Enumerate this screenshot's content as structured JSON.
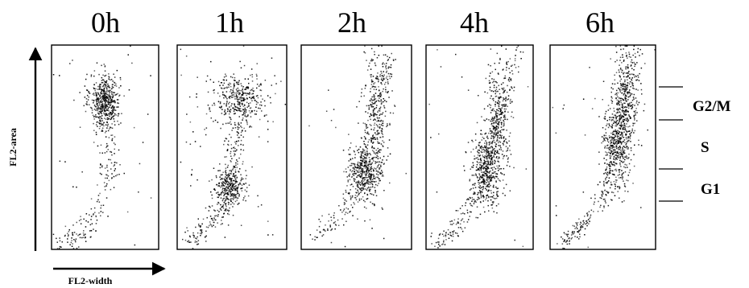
{
  "chart_data": {
    "type": "scatter",
    "xlabel": "FL2-width",
    "ylabel": "FL2-area",
    "panels": [
      {
        "label": "0h",
        "clusters": [
          {
            "x": 0.5,
            "y": 0.73,
            "sx": 0.07,
            "sy": 0.065,
            "n": 500
          }
        ],
        "trail": {
          "points": [
            [
              0.08,
              0.03
            ],
            [
              0.3,
              0.07
            ],
            [
              0.45,
              0.2
            ],
            [
              0.55,
              0.38
            ],
            [
              0.52,
              0.52
            ],
            [
              0.48,
              0.62
            ]
          ],
          "n": 190,
          "spread": 0.045
        },
        "scatter": 35
      },
      {
        "label": "1h",
        "clusters": [
          {
            "x": 0.48,
            "y": 0.31,
            "sx": 0.07,
            "sy": 0.05,
            "n": 300
          },
          {
            "x": 0.57,
            "y": 0.73,
            "sx": 0.13,
            "sy": 0.065,
            "n": 380
          }
        ],
        "trail": {
          "points": [
            [
              0.1,
              0.04
            ],
            [
              0.3,
              0.12
            ],
            [
              0.45,
              0.24
            ],
            [
              0.52,
              0.45
            ],
            [
              0.55,
              0.62
            ]
          ],
          "n": 210,
          "spread": 0.05
        },
        "scatter": 55
      },
      {
        "label": "2h",
        "clusters": [
          {
            "x": 0.58,
            "y": 0.38,
            "sx": 0.08,
            "sy": 0.07,
            "n": 420
          },
          {
            "x": 0.68,
            "y": 0.66,
            "sx": 0.06,
            "sy": 0.14,
            "n": 260
          }
        ],
        "trail": {
          "points": [
            [
              0.12,
              0.05
            ],
            [
              0.35,
              0.15
            ],
            [
              0.52,
              0.3
            ],
            [
              0.64,
              0.52
            ],
            [
              0.74,
              0.82
            ],
            [
              0.82,
              0.95
            ]
          ],
          "n": 220,
          "spread": 0.035
        },
        "scatter": 30
      },
      {
        "label": "4h",
        "clusters": [
          {
            "x": 0.57,
            "y": 0.4,
            "sx": 0.07,
            "sy": 0.09,
            "n": 430
          },
          {
            "x": 0.68,
            "y": 0.65,
            "sx": 0.06,
            "sy": 0.12,
            "n": 300
          }
        ],
        "trail": {
          "points": [
            [
              0.1,
              0.04
            ],
            [
              0.3,
              0.12
            ],
            [
              0.48,
              0.28
            ],
            [
              0.58,
              0.45
            ],
            [
              0.7,
              0.7
            ],
            [
              0.85,
              0.97
            ]
          ],
          "n": 260,
          "spread": 0.035
        },
        "scatter": 30
      },
      {
        "label": "6h",
        "clusters": [
          {
            "x": 0.64,
            "y": 0.52,
            "sx": 0.07,
            "sy": 0.12,
            "n": 480
          },
          {
            "x": 0.72,
            "y": 0.76,
            "sx": 0.06,
            "sy": 0.12,
            "n": 280
          }
        ],
        "trail": {
          "points": [
            [
              0.1,
              0.03
            ],
            [
              0.32,
              0.12
            ],
            [
              0.52,
              0.28
            ],
            [
              0.6,
              0.45
            ],
            [
              0.7,
              0.7
            ],
            [
              0.82,
              0.99
            ]
          ],
          "n": 260,
          "spread": 0.035
        },
        "scatter": 25
      }
    ],
    "phases": [
      {
        "label": "G2/M"
      },
      {
        "label": "S"
      },
      {
        "label": "G1"
      }
    ],
    "dot_color": "#000000"
  }
}
